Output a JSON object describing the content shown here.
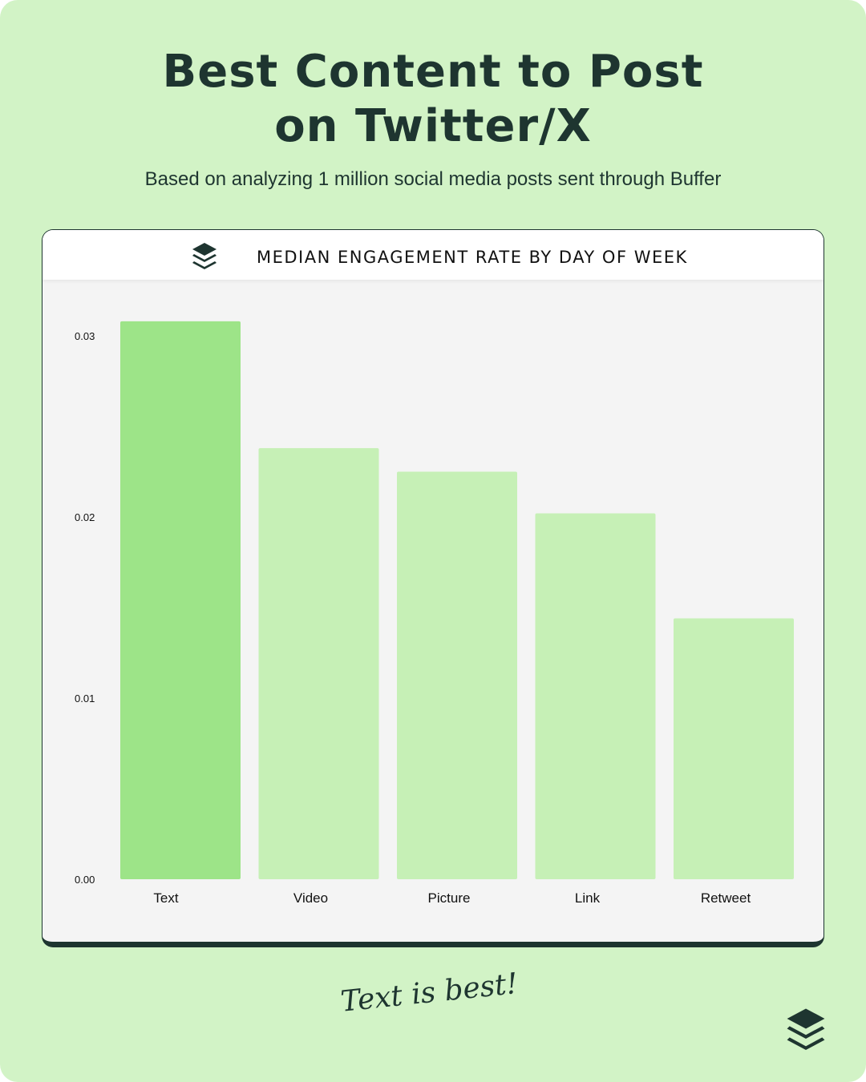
{
  "title_line1": "Best Content to Post",
  "title_line2": "on Twitter/X",
  "subtitle": "Based on analyzing 1 million social media posts sent through Buffer",
  "tagline": "Text is best!",
  "brand_icon": "buffer-layers-icon",
  "colors": {
    "background": "#d2f3c6",
    "highlight_bar": "#9de488",
    "bar": "#c6f0b6",
    "dark": "#1e3530"
  },
  "chart_data": {
    "type": "bar",
    "title": "MEDIAN ENGAGEMENT RATE BY DAY OF WEEK",
    "categories": [
      "Text",
      "Video",
      "Picture",
      "Link",
      "Retweet"
    ],
    "values": [
      0.0308,
      0.0238,
      0.0225,
      0.0202,
      0.0144
    ],
    "highlight": "Text",
    "yticks": [
      "0.00",
      "0.01",
      "0.02",
      "0.03"
    ],
    "ylim": [
      0,
      0.03
    ],
    "grid": false,
    "xlabel": "",
    "ylabel": ""
  }
}
